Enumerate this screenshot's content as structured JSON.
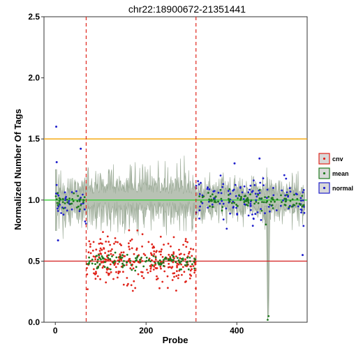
{
  "chart_data": {
    "type": "scatter",
    "title": "chr22:18900672-21351441",
    "xlabel": "Probe",
    "ylabel": "Normalized Number Of Tags",
    "xlim": [
      -25,
      555
    ],
    "ylim": [
      0,
      2.5
    ],
    "x_ticks": [
      0,
      200,
      400
    ],
    "y_ticks": [
      0.0,
      0.5,
      1.0,
      1.5,
      2.0,
      2.5
    ],
    "y_tick_labels": [
      "0.0",
      "0.5",
      "1.0",
      "1.5",
      "2.0",
      "2.5"
    ],
    "grid": false,
    "legend_position": "right",
    "legend": [
      {
        "name": "cnv",
        "color": "#e0241b",
        "border": "#e0241b"
      },
      {
        "name": "mean",
        "color": "#1e7a1e",
        "border": "#1e7a1e"
      },
      {
        "name": "normal",
        "color": "#1f1fcc",
        "border": "#1f1fcc"
      }
    ],
    "cnv_region": {
      "start": 68,
      "end": 310,
      "line_color": "#e0241b"
    },
    "reference_lines": [
      {
        "y": 1.5,
        "color": "#f5a300"
      },
      {
        "y": 1.0,
        "color": "#33cc33"
      },
      {
        "y": 0.5,
        "color": "#d42020"
      }
    ],
    "band": {
      "color": "#9aaa96",
      "fill": "#b8c2b4",
      "center_normal": 1.0,
      "center_cnv": 1.02,
      "spread": 0.1
    },
    "series": [
      {
        "name": "normal",
        "color": "#1f1fcc",
        "x_range": [
          0,
          68
        ],
        "center": 1.0,
        "spread": 0.09
      },
      {
        "name": "normal",
        "color": "#1f1fcc",
        "x_range": [
          310,
          550
        ],
        "center": 1.0,
        "spread": 0.09
      },
      {
        "name": "cnv",
        "color": "#e0241b",
        "x_range": [
          68,
          310
        ],
        "center": 0.5,
        "spread": 0.08
      },
      {
        "name": "mean",
        "color": "#1e7a1e",
        "x_range": [
          0,
          550
        ],
        "center": 1.0,
        "spread": 0.03
      }
    ],
    "outliers": [
      {
        "x": 2,
        "y": 1.6
      },
      {
        "x": 56,
        "y": 1.42
      },
      {
        "x": 3,
        "y": 1.31
      },
      {
        "x": 6,
        "y": 0.67
      },
      {
        "x": 545,
        "y": 0.55
      },
      {
        "x": 450,
        "y": 1.34
      },
      {
        "x": 395,
        "y": 1.3
      }
    ],
    "dips": [
      {
        "x": 464,
        "y": 0.8
      },
      {
        "x": 468,
        "y": 0.02
      },
      {
        "x": 470,
        "y": 0.05
      }
    ]
  }
}
